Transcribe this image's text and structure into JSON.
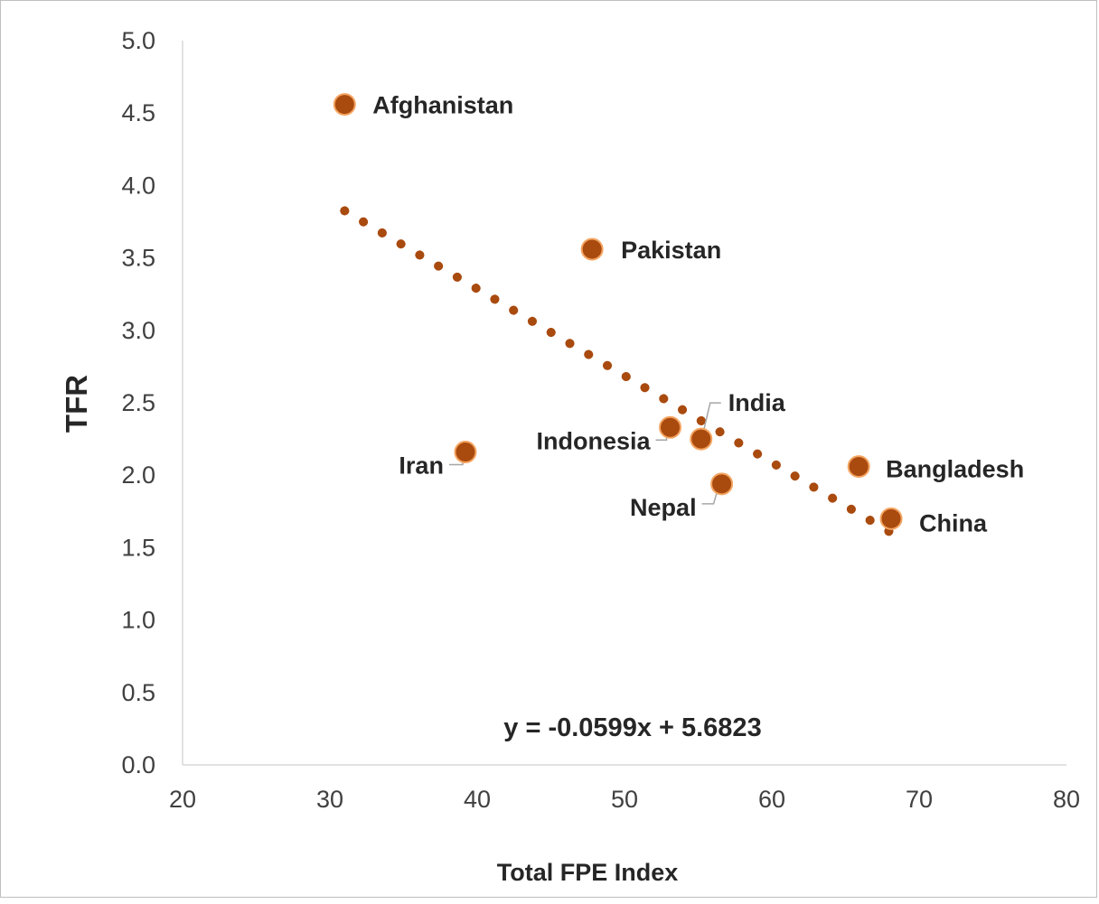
{
  "chart_data": {
    "type": "scatter",
    "xlabel": "Total FPE Index",
    "ylabel": "TFR",
    "xlim": [
      20,
      80
    ],
    "ylim": [
      0,
      5
    ],
    "x_ticks": [
      "20",
      "30",
      "40",
      "50",
      "60",
      "70",
      "80"
    ],
    "y_ticks": [
      "0.0",
      "0.5",
      "1.0",
      "1.5",
      "2.0",
      "2.5",
      "3.0",
      "3.5",
      "4.0",
      "4.5",
      "5.0"
    ],
    "grid": false,
    "legend": "none",
    "points": [
      {
        "label": "Afghanistan",
        "x": 31.0,
        "y": 4.56
      },
      {
        "label": "Pakistan",
        "x": 47.8,
        "y": 3.56
      },
      {
        "label": "India",
        "x": 55.2,
        "y": 2.25
      },
      {
        "label": "Indonesia",
        "x": 53.1,
        "y": 2.33
      },
      {
        "label": "Iran",
        "x": 39.2,
        "y": 2.16
      },
      {
        "label": "Nepal",
        "x": 56.6,
        "y": 1.94
      },
      {
        "label": "Bangladesh",
        "x": 65.9,
        "y": 2.06
      },
      {
        "label": "China",
        "x": 68.1,
        "y": 1.7
      }
    ],
    "trendline": {
      "type": "linear",
      "slope": -0.0599,
      "intercept": 5.6823,
      "x_range": [
        31.0,
        68.1
      ],
      "equation": "y = -0.0599x + 5.6823"
    },
    "colors": {
      "marker_fill": "#a94a0f",
      "marker_stroke": "#f4a460",
      "trendline": "#a94a0f",
      "leader_line": "#a6a6a6",
      "axis_line": "#d9d9d9"
    }
  }
}
